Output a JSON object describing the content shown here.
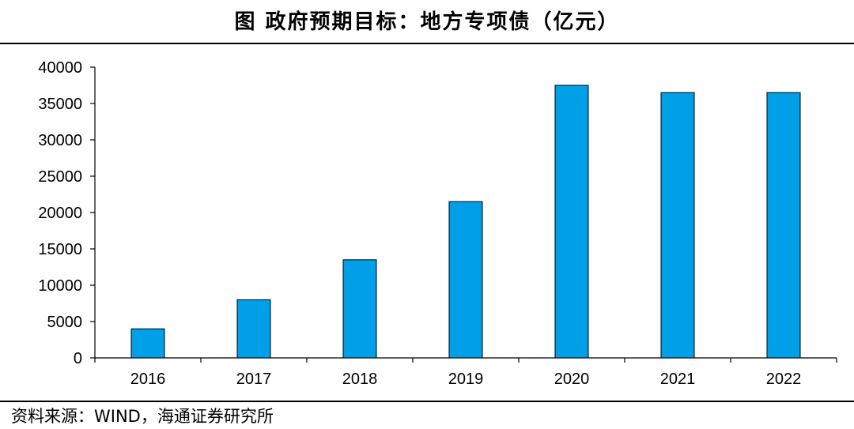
{
  "header": {
    "title": "图 政府预期目标：地方专项债（亿元）"
  },
  "footer": {
    "source": "资料来源：WIND，海通证券研究所"
  },
  "colors": {
    "bar_fill": "#00A0E9",
    "bar_stroke": "#000000",
    "axis": "#000000"
  },
  "chart_data": {
    "type": "bar",
    "title": "图 政府预期目标：地方专项债（亿元）",
    "xlabel": "",
    "ylabel": "",
    "categories": [
      "2016",
      "2017",
      "2018",
      "2019",
      "2020",
      "2021",
      "2022"
    ],
    "values": [
      4000,
      8000,
      13500,
      21500,
      37500,
      36500,
      36500
    ],
    "ylim": [
      0,
      40000
    ],
    "yticks": [
      0,
      5000,
      10000,
      15000,
      20000,
      25000,
      30000,
      35000,
      40000
    ],
    "grid": false,
    "legend": "none"
  }
}
